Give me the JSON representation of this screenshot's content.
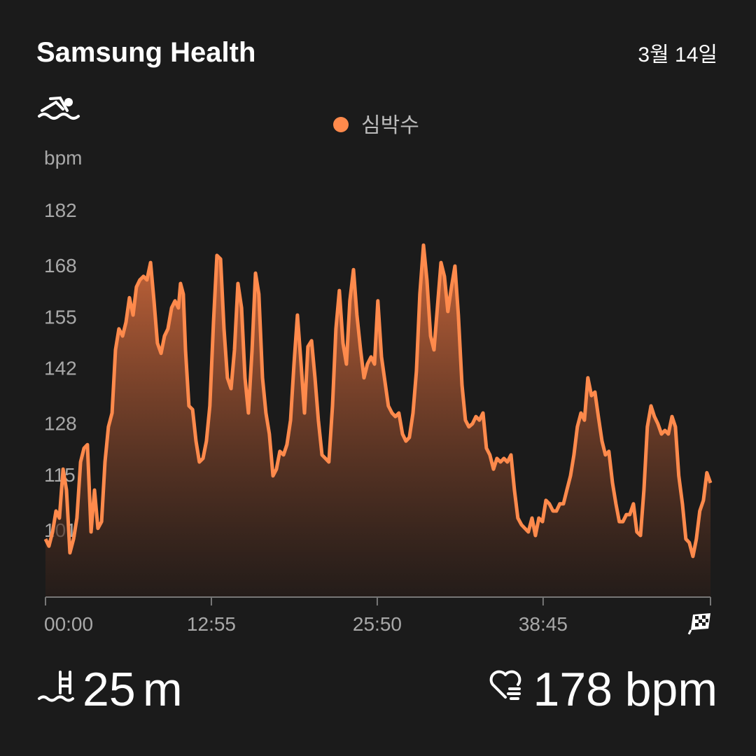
{
  "header": {
    "title": "Samsung Health",
    "date": "3월 14일"
  },
  "chart_data": {
    "type": "line",
    "y_label": "bpm",
    "xlim": [
      0,
      3107
    ],
    "xticks": [
      {
        "value": 0,
        "label": "00:00"
      },
      {
        "value": 775,
        "label": "12:55"
      },
      {
        "value": 1550,
        "label": "25:50"
      },
      {
        "value": 2325,
        "label": "38:45"
      }
    ],
    "ylim": [
      84,
      182
    ],
    "yticks": [
      101,
      115,
      128,
      142,
      155,
      168,
      182
    ],
    "grid": false,
    "x": [
      0,
      16,
      33,
      49,
      65,
      82,
      98,
      114,
      131,
      147,
      164,
      180,
      196,
      213,
      229,
      245,
      262,
      278,
      294,
      311,
      327,
      343,
      360,
      376,
      392,
      409,
      425,
      441,
      458,
      474,
      491,
      507,
      523,
      540,
      556,
      572,
      589,
      605,
      621,
      631,
      644,
      654,
      670,
      687,
      703,
      719,
      736,
      752,
      768,
      785,
      801,
      818,
      834,
      850,
      867,
      883,
      899,
      916,
      932,
      948,
      965,
      981,
      997,
      1014,
      1030,
      1046,
      1063,
      1079,
      1095,
      1112,
      1128,
      1145,
      1161,
      1177,
      1194,
      1210,
      1226,
      1243,
      1259,
      1275,
      1292,
      1308,
      1324,
      1341,
      1357,
      1373,
      1390,
      1406,
      1422,
      1439,
      1455,
      1472,
      1488,
      1504,
      1521,
      1537,
      1553,
      1570,
      1586,
      1602,
      1619,
      1635,
      1651,
      1668,
      1684,
      1700,
      1717,
      1733,
      1749,
      1766,
      1782,
      1799,
      1815,
      1831,
      1848,
      1864,
      1880,
      1897,
      1913,
      1929,
      1946,
      1962,
      1978,
      1995,
      2011,
      2027,
      2044,
      2060,
      2076,
      2093,
      2109,
      2126,
      2142,
      2158,
      2175,
      2191,
      2207,
      2224,
      2240,
      2256,
      2273,
      2289,
      2305,
      2322,
      2338,
      2354,
      2371,
      2387,
      2403,
      2420,
      2436,
      2453,
      2469,
      2485,
      2502,
      2518,
      2534,
      2551,
      2567,
      2583,
      2600,
      2616,
      2632,
      2649,
      2665,
      2681,
      2698,
      2714,
      2730,
      2747,
      2763,
      2780,
      2796,
      2812,
      2829,
      2845,
      2861,
      2878,
      2894,
      2910,
      2927,
      2943,
      2959,
      2976,
      2992,
      3008,
      3025,
      3041,
      3057,
      3074,
      3090,
      3107
    ],
    "series": [
      {
        "name": "심박수",
        "color": "#ff8a4c",
        "values": [
          98.7,
          96.9,
          100.5,
          105.8,
          104.0,
          116.4,
          111.1,
          95.2,
          98.7,
          104.0,
          118.2,
          121.7,
          122.6,
          100.5,
          111.1,
          101.4,
          103.1,
          118.2,
          127.1,
          130.6,
          146.6,
          151.9,
          150.1,
          153.6,
          159.8,
          155.4,
          162.5,
          164.3,
          165.2,
          164.3,
          168.7,
          159.0,
          148.3,
          145.7,
          150.1,
          151.9,
          157.2,
          159.0,
          157.2,
          163.4,
          160.7,
          146.6,
          132.4,
          131.5,
          123.5,
          118.2,
          119.1,
          123.5,
          132.4,
          153.6,
          170.5,
          169.6,
          151.9,
          139.5,
          136.8,
          146.6,
          163.4,
          157.2,
          139.5,
          130.6,
          146.6,
          166.0,
          160.7,
          139.5,
          130.6,
          125.3,
          114.7,
          116.4,
          120.9,
          120.0,
          122.6,
          128.8,
          143.0,
          155.4,
          143.0,
          130.6,
          147.4,
          148.9,
          139.5,
          128.8,
          120.0,
          119.1,
          118.2,
          132.4,
          151.9,
          161.6,
          148.3,
          143.0,
          159.0,
          166.9,
          155.4,
          146.6,
          139.5,
          143.0,
          144.8,
          143.0,
          159.0,
          144.8,
          138.6,
          132.4,
          130.6,
          129.7,
          130.6,
          125.3,
          123.5,
          124.4,
          130.6,
          141.2,
          160.7,
          173.1,
          164.3,
          150.1,
          146.6,
          157.2,
          168.7,
          165.2,
          156.3,
          162.5,
          167.8,
          155.4,
          137.7,
          128.8,
          127.1,
          127.9,
          129.7,
          128.8,
          130.6,
          121.7,
          120.0,
          116.4,
          119.1,
          118.2,
          119.1,
          118.2,
          120.0,
          111.1,
          104.0,
          102.3,
          101.4,
          100.5,
          104.0,
          99.6,
          104.0,
          103.1,
          108.5,
          107.6,
          105.8,
          105.8,
          107.6,
          107.6,
          111.1,
          114.7,
          120.0,
          127.1,
          130.6,
          128.8,
          139.5,
          135.0,
          135.9,
          129.7,
          123.5,
          120.0,
          120.9,
          112.9,
          107.6,
          103.1,
          103.1,
          104.9,
          104.9,
          107.6,
          100.5,
          99.6,
          111.1,
          127.1,
          132.4,
          129.7,
          127.9,
          125.3,
          126.2,
          125.3,
          129.7,
          127.1,
          114.7,
          107.6,
          98.7,
          97.8,
          94.3,
          98.7,
          105.8,
          108.5,
          115.5,
          112.9
        ]
      }
    ]
  },
  "stats": {
    "distance": "25",
    "distance_unit": "m",
    "max_heart_rate": "178",
    "heart_rate_unit": "bpm"
  }
}
